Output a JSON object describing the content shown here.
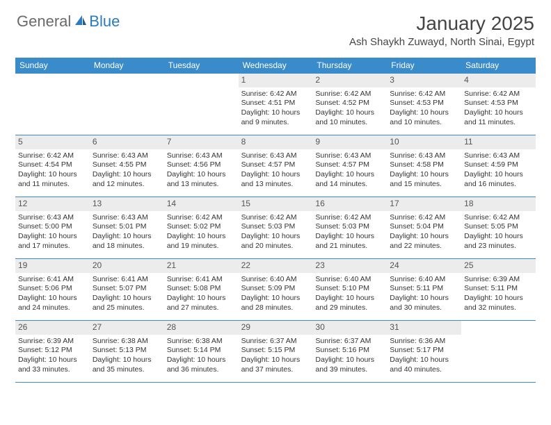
{
  "logo": {
    "text1": "General",
    "text2": "Blue"
  },
  "title": "January 2025",
  "location": "Ash Shaykh Zuwayd, North Sinai, Egypt",
  "colors": {
    "header_bg": "#3a8bc9",
    "header_text": "#ffffff",
    "daynum_bg": "#ececec",
    "border": "#3a8bc9",
    "brand_gray": "#6a6a6a",
    "brand_blue": "#2a7bbf"
  },
  "weekdays": [
    "Sunday",
    "Monday",
    "Tuesday",
    "Wednesday",
    "Thursday",
    "Friday",
    "Saturday"
  ],
  "weeks": [
    [
      {
        "day": "",
        "empty": true
      },
      {
        "day": "",
        "empty": true
      },
      {
        "day": "",
        "empty": true
      },
      {
        "day": "1",
        "sunrise": "6:42 AM",
        "sunset": "4:51 PM",
        "daylight": "10 hours and 9 minutes."
      },
      {
        "day": "2",
        "sunrise": "6:42 AM",
        "sunset": "4:52 PM",
        "daylight": "10 hours and 10 minutes."
      },
      {
        "day": "3",
        "sunrise": "6:42 AM",
        "sunset": "4:53 PM",
        "daylight": "10 hours and 10 minutes."
      },
      {
        "day": "4",
        "sunrise": "6:42 AM",
        "sunset": "4:53 PM",
        "daylight": "10 hours and 11 minutes."
      }
    ],
    [
      {
        "day": "5",
        "sunrise": "6:42 AM",
        "sunset": "4:54 PM",
        "daylight": "10 hours and 11 minutes."
      },
      {
        "day": "6",
        "sunrise": "6:43 AM",
        "sunset": "4:55 PM",
        "daylight": "10 hours and 12 minutes."
      },
      {
        "day": "7",
        "sunrise": "6:43 AM",
        "sunset": "4:56 PM",
        "daylight": "10 hours and 13 minutes."
      },
      {
        "day": "8",
        "sunrise": "6:43 AM",
        "sunset": "4:57 PM",
        "daylight": "10 hours and 13 minutes."
      },
      {
        "day": "9",
        "sunrise": "6:43 AM",
        "sunset": "4:57 PM",
        "daylight": "10 hours and 14 minutes."
      },
      {
        "day": "10",
        "sunrise": "6:43 AM",
        "sunset": "4:58 PM",
        "daylight": "10 hours and 15 minutes."
      },
      {
        "day": "11",
        "sunrise": "6:43 AM",
        "sunset": "4:59 PM",
        "daylight": "10 hours and 16 minutes."
      }
    ],
    [
      {
        "day": "12",
        "sunrise": "6:43 AM",
        "sunset": "5:00 PM",
        "daylight": "10 hours and 17 minutes."
      },
      {
        "day": "13",
        "sunrise": "6:43 AM",
        "sunset": "5:01 PM",
        "daylight": "10 hours and 18 minutes."
      },
      {
        "day": "14",
        "sunrise": "6:42 AM",
        "sunset": "5:02 PM",
        "daylight": "10 hours and 19 minutes."
      },
      {
        "day": "15",
        "sunrise": "6:42 AM",
        "sunset": "5:03 PM",
        "daylight": "10 hours and 20 minutes."
      },
      {
        "day": "16",
        "sunrise": "6:42 AM",
        "sunset": "5:03 PM",
        "daylight": "10 hours and 21 minutes."
      },
      {
        "day": "17",
        "sunrise": "6:42 AM",
        "sunset": "5:04 PM",
        "daylight": "10 hours and 22 minutes."
      },
      {
        "day": "18",
        "sunrise": "6:42 AM",
        "sunset": "5:05 PM",
        "daylight": "10 hours and 23 minutes."
      }
    ],
    [
      {
        "day": "19",
        "sunrise": "6:41 AM",
        "sunset": "5:06 PM",
        "daylight": "10 hours and 24 minutes."
      },
      {
        "day": "20",
        "sunrise": "6:41 AM",
        "sunset": "5:07 PM",
        "daylight": "10 hours and 25 minutes."
      },
      {
        "day": "21",
        "sunrise": "6:41 AM",
        "sunset": "5:08 PM",
        "daylight": "10 hours and 27 minutes."
      },
      {
        "day": "22",
        "sunrise": "6:40 AM",
        "sunset": "5:09 PM",
        "daylight": "10 hours and 28 minutes."
      },
      {
        "day": "23",
        "sunrise": "6:40 AM",
        "sunset": "5:10 PM",
        "daylight": "10 hours and 29 minutes."
      },
      {
        "day": "24",
        "sunrise": "6:40 AM",
        "sunset": "5:11 PM",
        "daylight": "10 hours and 30 minutes."
      },
      {
        "day": "25",
        "sunrise": "6:39 AM",
        "sunset": "5:11 PM",
        "daylight": "10 hours and 32 minutes."
      }
    ],
    [
      {
        "day": "26",
        "sunrise": "6:39 AM",
        "sunset": "5:12 PM",
        "daylight": "10 hours and 33 minutes."
      },
      {
        "day": "27",
        "sunrise": "6:38 AM",
        "sunset": "5:13 PM",
        "daylight": "10 hours and 35 minutes."
      },
      {
        "day": "28",
        "sunrise": "6:38 AM",
        "sunset": "5:14 PM",
        "daylight": "10 hours and 36 minutes."
      },
      {
        "day": "29",
        "sunrise": "6:37 AM",
        "sunset": "5:15 PM",
        "daylight": "10 hours and 37 minutes."
      },
      {
        "day": "30",
        "sunrise": "6:37 AM",
        "sunset": "5:16 PM",
        "daylight": "10 hours and 39 minutes."
      },
      {
        "day": "31",
        "sunrise": "6:36 AM",
        "sunset": "5:17 PM",
        "daylight": "10 hours and 40 minutes."
      },
      {
        "day": "",
        "empty": true
      }
    ]
  ],
  "labels": {
    "sunrise": "Sunrise:",
    "sunset": "Sunset:",
    "daylight": "Daylight:"
  }
}
